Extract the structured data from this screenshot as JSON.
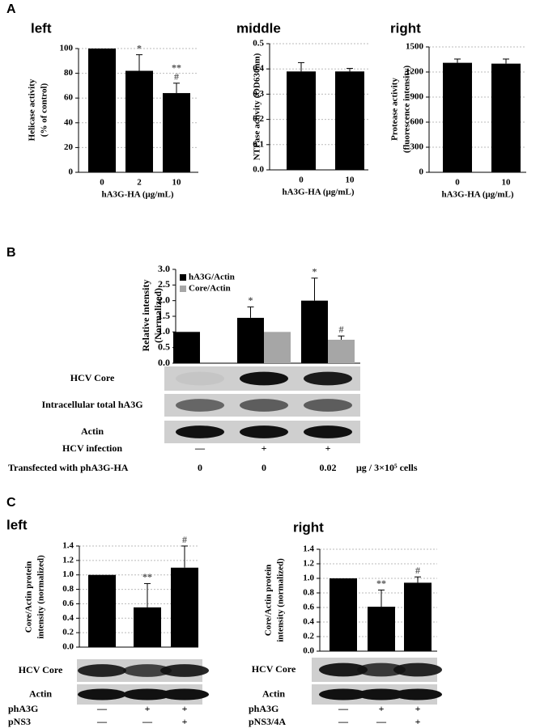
{
  "chart_data": [
    {
      "type": "bar",
      "panel": "A",
      "title": "left",
      "categories": [
        "0",
        "2",
        "10"
      ],
      "values": [
        100,
        82,
        64
      ],
      "errors": [
        null,
        13,
        8
      ],
      "significance": [
        null,
        [
          "*"
        ],
        [
          "**",
          "#"
        ]
      ],
      "color": "#000000",
      "xlabel": "hA3G-HA (μg/mL)",
      "ylabel": [
        "Helicase activity",
        "(% of control)"
      ],
      "ylim": [
        0,
        100
      ],
      "yticks": [
        0,
        20,
        40,
        60,
        80,
        100
      ],
      "grid": true
    },
    {
      "type": "bar",
      "title": "middle",
      "categories": [
        "0",
        "10"
      ],
      "values": [
        0.39,
        0.39
      ],
      "errors": [
        0.035,
        0.012
      ],
      "color": "#000000",
      "xlabel": "hA3G-HA (μg/mL)",
      "ylabel": [
        "NTPase activity (OD630nm)"
      ],
      "ylim": [
        0,
        0.5
      ],
      "yticks": [
        {
          "value": 0,
          "label": "0.0"
        },
        0.1,
        0.2,
        0.3,
        0.4,
        0.5
      ],
      "grid": true
    },
    {
      "type": "bar",
      "title": "right",
      "categories": [
        "0",
        "10"
      ],
      "values": [
        1310,
        1300
      ],
      "errors": [
        45,
        55
      ],
      "color": "#000000",
      "xlabel": "hA3G-HA (μg/mL)",
      "ylabel": [
        "Protease activity",
        "(fluorescence intensity)"
      ],
      "ylim": [
        0,
        1500
      ],
      "yticks": [
        0,
        300,
        600,
        900,
        1200,
        1500
      ],
      "grid": true
    },
    {
      "type": "grouped_bar",
      "panel": "B",
      "series": [
        {
          "name": "hA3G/Actin",
          "color": "#000000",
          "values": [
            1.0,
            1.45,
            2.0
          ],
          "errors": [
            null,
            0.35,
            0.72
          ],
          "significance": [
            null,
            [
              "*"
            ],
            [
              "*"
            ]
          ]
        },
        {
          "name": "Core/Actin",
          "color": "#a6a6a6",
          "values": [
            null,
            1.0,
            0.75
          ],
          "errors": [
            null,
            null,
            0.12
          ],
          "significance": [
            null,
            null,
            [
              "#"
            ]
          ]
        }
      ],
      "ylabel": [
        "Relative intensity",
        "(Normalized)"
      ],
      "ylim": [
        0,
        3
      ],
      "yticks": [
        {
          "value": 0,
          "label": "0.0"
        },
        0.5,
        {
          "value": 1,
          "label": "1.0"
        },
        1.5,
        {
          "value": 2,
          "label": "2.0"
        },
        2.5,
        {
          "value": 3,
          "label": "3.0"
        }
      ],
      "grid": false,
      "legend": "top-left",
      "blots": [
        "HCV Core",
        "Intracellular total hA3G",
        "Actin"
      ],
      "conditions": [
        {
          "name": "HCV infection",
          "values": [
            "—",
            "+",
            "+"
          ]
        },
        {
          "name": "Transfected with phA3G-HA",
          "values": [
            "0",
            "0",
            "0.02"
          ],
          "unit": "μg / 3×10⁵ cells"
        }
      ]
    },
    {
      "type": "bar",
      "panel": "C",
      "title": "left",
      "values": [
        1.0,
        0.55,
        1.1
      ],
      "errors": [
        null,
        0.33,
        0.3
      ],
      "significance": [
        null,
        [
          "**"
        ],
        [
          "#"
        ]
      ],
      "color": "#000000",
      "ylabel": [
        "Core/Actin protein",
        "intensity (normalized)"
      ],
      "ylim": [
        0,
        1.4
      ],
      "yticks": [
        {
          "value": 0,
          "label": "0.0"
        },
        0.2,
        0.4,
        0.6,
        0.8,
        {
          "value": 1,
          "label": "1.0"
        },
        1.2,
        1.4
      ],
      "grid": true,
      "blots": [
        "HCV Core",
        "Actin"
      ],
      "conditions": [
        {
          "name": "phA3G",
          "values": [
            "—",
            "+",
            "+"
          ]
        },
        {
          "name": "pNS3",
          "values": [
            "—",
            "—",
            "+"
          ]
        }
      ]
    },
    {
      "type": "bar",
      "title": "right",
      "values": [
        1.0,
        0.61,
        0.94
      ],
      "errors": [
        null,
        0.23,
        0.08
      ],
      "significance": [
        null,
        [
          "**"
        ],
        [
          "#"
        ]
      ],
      "color": "#000000",
      "ylabel": [
        "Core/Actin protein",
        "intensity (normalized)"
      ],
      "ylim": [
        0,
        1.4
      ],
      "yticks": [
        {
          "value": 0,
          "label": "0.0"
        },
        0.2,
        0.4,
        0.6,
        0.8,
        {
          "value": 1,
          "label": "1.0"
        },
        1.2,
        1.4
      ],
      "grid": true,
      "blots": [
        "HCV Core",
        "Actin"
      ],
      "conditions": [
        {
          "name": "phA3G",
          "values": [
            "—",
            "+",
            "+"
          ]
        },
        {
          "name": "pNS3/4A",
          "values": [
            "—",
            "—",
            "+"
          ]
        }
      ]
    }
  ]
}
